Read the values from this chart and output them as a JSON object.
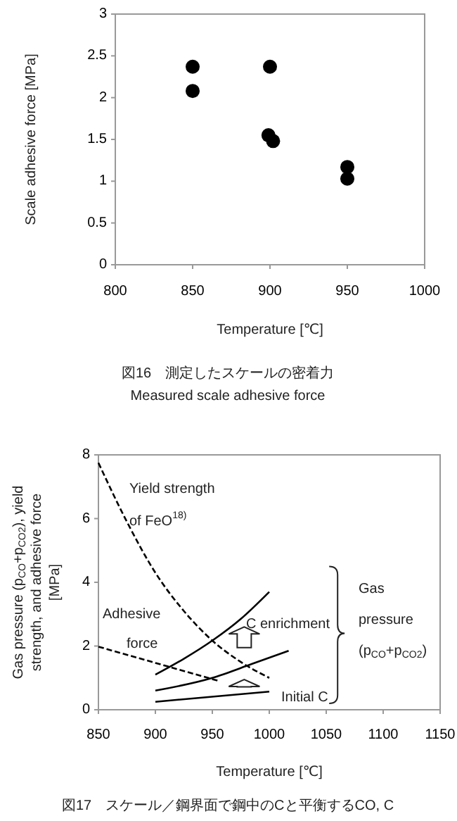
{
  "chart_data": [
    {
      "type": "scatter",
      "xlabel": "Temperature [℃]",
      "ylabel": "Scale adhesive force  [MPa]",
      "x": [
        850,
        850,
        900,
        899,
        902,
        950,
        950
      ],
      "values": [
        2.37,
        2.08,
        2.37,
        1.55,
        1.48,
        1.17,
        1.03
      ],
      "color": "#000000",
      "marker": "circle",
      "xlim": [
        800,
        1000
      ],
      "xticks": [
        800,
        850,
        900,
        950,
        1000
      ],
      "ylim": [
        0,
        3
      ],
      "yticks": [
        0,
        0.5,
        1,
        1.5,
        2,
        2.5,
        3
      ],
      "annotations": [
        "図16　測定したスケールの密着力",
        "Measured scale adhesive force"
      ]
    },
    {
      "type": "line",
      "xlabel": "Temperature [℃]",
      "ylabel": "Gas pressure (p$_{CO}$+p$_{CO2}$), yield\nstrength, and adhesive force\n[MPa]",
      "xlim": [
        850,
        1150
      ],
      "xticks": [
        850,
        900,
        950,
        1000,
        1050,
        1100,
        1150
      ],
      "ylim": [
        0,
        8
      ],
      "yticks": [
        0,
        2,
        4,
        6,
        8
      ],
      "series": [
        {
          "color": "#000000",
          "line_style": "dashed",
          "x": [
            850,
            875,
            900,
            925,
            950,
            975,
            1000
          ],
          "values": [
            7.75,
            5.9,
            4.3,
            3.1,
            2.17,
            1.5,
            1.0
          ]
        },
        {
          "color": "#000000",
          "line_style": "dashed",
          "x": [
            850,
            956
          ],
          "values": [
            1.98,
            0.9
          ]
        },
        {
          "color": "#000000",
          "line_style": "solid",
          "x": [
            900,
            925,
            950,
            975,
            1000
          ],
          "values": [
            1.1,
            1.6,
            2.17,
            2.85,
            3.7
          ]
        },
        {
          "color": "#000000",
          "line_style": "solid",
          "x": [
            900,
            950,
            985,
            1017
          ],
          "values": [
            0.6,
            1.0,
            1.44,
            1.85
          ]
        },
        {
          "color": "#000000",
          "line_style": "solid",
          "x": [
            900,
            1000
          ],
          "values": [
            0.25,
            0.57
          ]
        }
      ],
      "annotations": [
        "Yield strength",
        "of FeO$^{18)}$",
        "Adhesive",
        "force",
        "C enrichment",
        "Initial C",
        "Gas",
        "pressure",
        "(p$_{CO}$+p$_{CO2}$)",
        "図17　スケール／鋼界面で鋼中のCと平衡するCO, C"
      ]
    }
  ]
}
